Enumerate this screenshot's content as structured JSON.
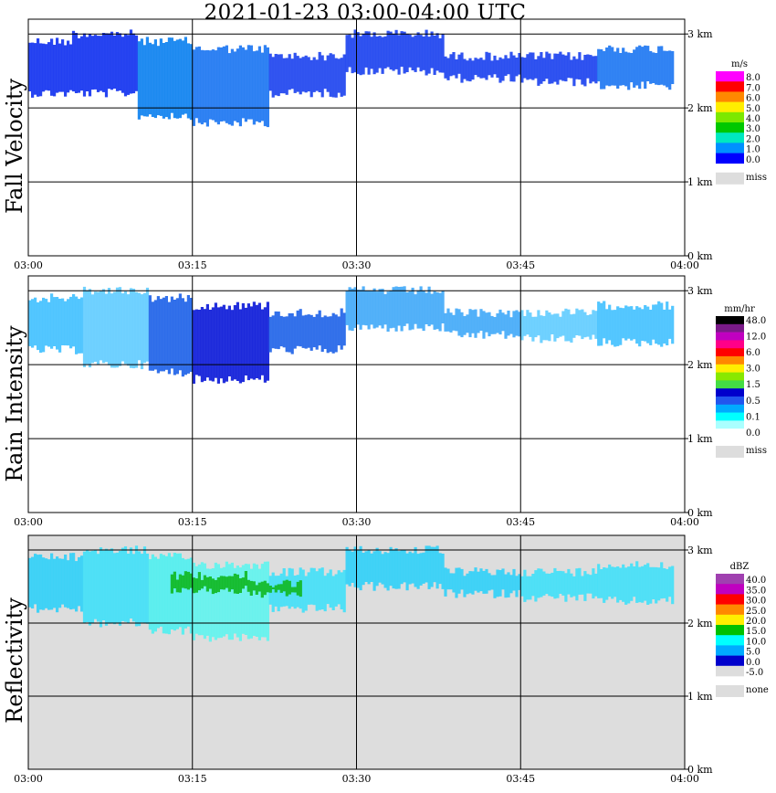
{
  "title": "2021-01-23   03:00-04:00 UTC",
  "time_ticks": [
    "03:00",
    "03:15",
    "03:30",
    "03:45",
    "04:00"
  ],
  "height_ticks": [
    "0 km",
    "1 km",
    "2 km",
    "3 km"
  ],
  "chart_data": [
    {
      "type": "heatmap",
      "title": "Fall Velocity",
      "ylabel": "Fall Velocity",
      "xlim": [
        "03:00",
        "04:00"
      ],
      "ylim_km": [
        0,
        3.2
      ],
      "grid": true,
      "legend_unit": "m/s",
      "legend": [
        {
          "label": "8.0",
          "color": "#ff00ff"
        },
        {
          "label": "7.0",
          "color": "#ff0000"
        },
        {
          "label": "6.0",
          "color": "#ff8800"
        },
        {
          "label": "5.0",
          "color": "#ffee00"
        },
        {
          "label": "4.0",
          "color": "#7ce800"
        },
        {
          "label": "3.0",
          "color": "#00c800"
        },
        {
          "label": "2.0",
          "color": "#00e8c0"
        },
        {
          "label": "1.0",
          "color": "#0090ff"
        },
        {
          "label": "0.0",
          "color": "#0000ff"
        },
        {
          "label": "miss",
          "color": "#dddddd"
        }
      ],
      "background": "#ffffff",
      "echo_regions": [
        {
          "start": "03:00",
          "end": "03:04",
          "base_km": 2.2,
          "top_km": 2.9,
          "color": "#1030f0"
        },
        {
          "start": "03:04",
          "end": "03:10",
          "base_km": 2.2,
          "top_km": 3.0,
          "color": "#1030f0"
        },
        {
          "start": "03:10",
          "end": "03:15",
          "base_km": 1.9,
          "top_km": 2.9,
          "color": "#0a80f0"
        },
        {
          "start": "03:15",
          "end": "03:22",
          "base_km": 1.8,
          "top_km": 2.8,
          "color": "#1a74f2"
        },
        {
          "start": "03:22",
          "end": "03:29",
          "base_km": 2.2,
          "top_km": 2.7,
          "color": "#1a40ee"
        },
        {
          "start": "03:29",
          "end": "03:38",
          "base_km": 2.5,
          "top_km": 3.0,
          "color": "#1a40ee"
        },
        {
          "start": "03:38",
          "end": "03:45",
          "base_km": 2.4,
          "top_km": 2.7,
          "color": "#1a40ee"
        },
        {
          "start": "03:45",
          "end": "03:52",
          "base_km": 2.35,
          "top_km": 2.7,
          "color": "#1a40ee"
        },
        {
          "start": "03:52",
          "end": "03:59",
          "base_km": 2.3,
          "top_km": 2.8,
          "color": "#1a74f2"
        }
      ]
    },
    {
      "type": "heatmap",
      "title": "Rain Intensity",
      "ylabel": "Rain Intensity",
      "xlim": [
        "03:00",
        "04:00"
      ],
      "ylim_km": [
        0,
        3.2
      ],
      "grid": true,
      "legend_unit": "mm/hr",
      "legend": [
        {
          "label": "48.0",
          "color": "#000000"
        },
        {
          "label": "",
          "color": "#7a1a88"
        },
        {
          "label": "12.0",
          "color": "#c000c0"
        },
        {
          "label": "",
          "color": "#ff0088"
        },
        {
          "label": "6.0",
          "color": "#ff0000"
        },
        {
          "label": "",
          "color": "#ff8800"
        },
        {
          "label": "3.0",
          "color": "#ffee00"
        },
        {
          "label": "",
          "color": "#88e800"
        },
        {
          "label": "1.5",
          "color": "#44dd44"
        },
        {
          "label": "",
          "color": "#0000cc"
        },
        {
          "label": "0.5",
          "color": "#2255ee"
        },
        {
          "label": "",
          "color": "#00aaff"
        },
        {
          "label": "0.1",
          "color": "#00ffff"
        },
        {
          "label": "",
          "color": "#aaffff"
        },
        {
          "label": "0.0",
          "color": "#ffffff"
        },
        {
          "label": "miss",
          "color": "#dddddd"
        }
      ],
      "background": "#ffffff",
      "echo_regions": [
        {
          "start": "03:00",
          "end": "03:05",
          "base_km": 2.2,
          "top_km": 2.9,
          "color": "#40c0ff"
        },
        {
          "start": "03:05",
          "end": "03:11",
          "base_km": 2.0,
          "top_km": 3.0,
          "color": "#60ccff"
        },
        {
          "start": "03:11",
          "end": "03:15",
          "base_km": 1.9,
          "top_km": 2.9,
          "color": "#1c60e8"
        },
        {
          "start": "03:15",
          "end": "03:22",
          "base_km": 1.8,
          "top_km": 2.8,
          "color": "#0a18d8"
        },
        {
          "start": "03:22",
          "end": "03:29",
          "base_km": 2.2,
          "top_km": 2.7,
          "color": "#1c60e8"
        },
        {
          "start": "03:29",
          "end": "03:38",
          "base_km": 2.5,
          "top_km": 3.0,
          "color": "#40a8f8"
        },
        {
          "start": "03:38",
          "end": "03:45",
          "base_km": 2.4,
          "top_km": 2.7,
          "color": "#40a8f8"
        },
        {
          "start": "03:45",
          "end": "03:52",
          "base_km": 2.35,
          "top_km": 2.7,
          "color": "#60ccff"
        },
        {
          "start": "03:52",
          "end": "03:59",
          "base_km": 2.3,
          "top_km": 2.8,
          "color": "#40c0ff"
        }
      ]
    },
    {
      "type": "heatmap",
      "title": "Reflectivity",
      "ylabel": "Reflectivity",
      "xlim": [
        "03:00",
        "04:00"
      ],
      "ylim_km": [
        0,
        3.2
      ],
      "grid": true,
      "legend_unit": "dBZ",
      "legend": [
        {
          "label": "40.0",
          "color": "#a040b0"
        },
        {
          "label": "35.0",
          "color": "#c000c0"
        },
        {
          "label": "30.0",
          "color": "#ff0000"
        },
        {
          "label": "25.0",
          "color": "#ff8800"
        },
        {
          "label": "20.0",
          "color": "#ffee00"
        },
        {
          "label": "15.0",
          "color": "#00c000"
        },
        {
          "label": "10.0",
          "color": "#00ffff"
        },
        {
          "label": "5.0",
          "color": "#00aaff"
        },
        {
          "label": "0.0",
          "color": "#0000cc"
        },
        {
          "label": "-5.0",
          "color": "#dddddd"
        },
        {
          "label": "none",
          "color": "#dddddd"
        }
      ],
      "background": "#dddddd",
      "echo_regions": [
        {
          "start": "03:00",
          "end": "03:05",
          "base_km": 2.2,
          "top_km": 2.9,
          "color": "#30d0f8"
        },
        {
          "start": "03:05",
          "end": "03:11",
          "base_km": 2.0,
          "top_km": 3.0,
          "color": "#40e0f8"
        },
        {
          "start": "03:11",
          "end": "03:15",
          "base_km": 1.9,
          "top_km": 2.9,
          "color": "#50f0f0"
        },
        {
          "start": "03:15",
          "end": "03:22",
          "base_km": 1.8,
          "top_km": 2.8,
          "color": "#60f4ee"
        },
        {
          "start": "03:22",
          "end": "03:29",
          "base_km": 2.2,
          "top_km": 2.7,
          "color": "#40e0f8"
        },
        {
          "start": "03:29",
          "end": "03:38",
          "base_km": 2.5,
          "top_km": 3.0,
          "color": "#30d0f8"
        },
        {
          "start": "03:38",
          "end": "03:45",
          "base_km": 2.4,
          "top_km": 2.7,
          "color": "#30d0f8"
        },
        {
          "start": "03:45",
          "end": "03:52",
          "base_km": 2.35,
          "top_km": 2.7,
          "color": "#40e0f8"
        },
        {
          "start": "03:52",
          "end": "03:59",
          "base_km": 2.3,
          "top_km": 2.8,
          "color": "#40e0f8"
        }
      ],
      "core_regions": [
        {
          "start": "03:13",
          "end": "03:20",
          "base_km": 2.45,
          "top_km": 2.65,
          "color": "#10b820"
        },
        {
          "start": "03:20",
          "end": "03:25",
          "base_km": 2.4,
          "top_km": 2.55,
          "color": "#10b820"
        }
      ]
    }
  ]
}
